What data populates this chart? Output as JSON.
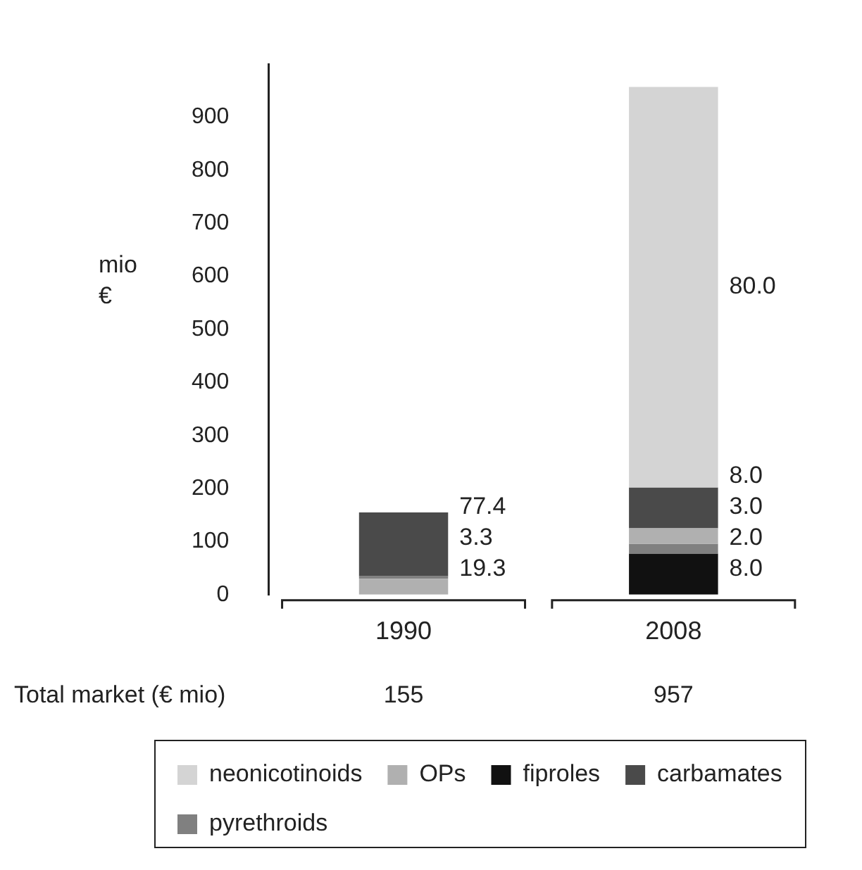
{
  "chart_data": {
    "type": "bar",
    "categories": [
      "1990",
      "2008"
    ],
    "ylabel": "mio €",
    "ylim": [
      0,
      1000
    ],
    "yticks": [
      0,
      100,
      200,
      300,
      400,
      500,
      600,
      700,
      800,
      900
    ],
    "grid": false,
    "legend": "bottom",
    "series": [
      {
        "name": "neonicotinoids",
        "color": "#d4d4d4",
        "values": [
          null,
          755
        ],
        "base": [
          null,
          202
        ]
      },
      {
        "name": "OPs",
        "color": "#b0b0b0",
        "values": [
          30,
          29
        ],
        "base": [
          0,
          96
        ]
      },
      {
        "name": "fiproles",
        "color": "#111111",
        "values": [
          null,
          77
        ],
        "base": [
          null,
          0
        ]
      },
      {
        "name": "carbamates",
        "color": "#4a4a4a",
        "values": [
          120,
          77
        ],
        "base": [
          35,
          125
        ]
      },
      {
        "name": "pyrethroids",
        "color": "#808080",
        "values": [
          5,
          19
        ],
        "base": [
          30,
          77
        ]
      }
    ],
    "annotations": [
      "77.4",
      "3.3",
      "19.3",
      "80.0",
      "8.0",
      "3.0",
      "2.0",
      "8.0",
      "Total market (€ mio)",
      "155",
      "957"
    ]
  }
}
